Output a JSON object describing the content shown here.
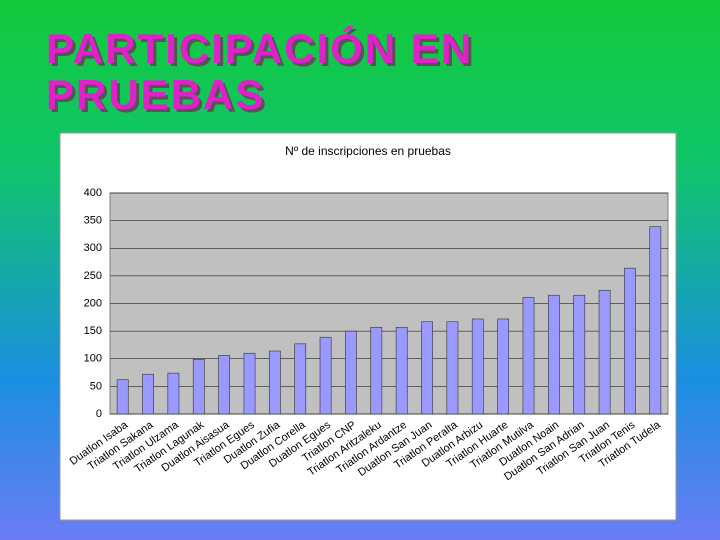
{
  "slide_title": "PARTICIPACIÓN EN PRUEBAS",
  "chart_data": {
    "type": "bar",
    "title": "Nº de inscripciones en pruebas",
    "categories": [
      "Duatlon Isaba",
      "Triatlon Sakana",
      "Triatlon Ulzama",
      "Triatlon Lagunak",
      "Duatlon Aisasua",
      "Triatlon Egues",
      "Duatlon Zufia",
      "Duatlon Corella",
      "Duatlon Egues",
      "Triatlon CNP",
      "Triatlon Aritzaleku",
      "Triatlon Ardantze",
      "Duatlon San Juan",
      "Triatlon Peralta",
      "Duatlon Arbizu",
      "Triatlon Huarte",
      "Triatlon Mutilva",
      "Duatlon Noain",
      "Duatlon San Adrian",
      "Triatlon San Juan",
      "Triatlon Tenis",
      "Triatlon Tudela"
    ],
    "values": [
      62,
      72,
      74,
      99,
      106,
      110,
      114,
      127,
      139,
      150,
      157,
      157,
      167,
      167,
      172,
      172,
      211,
      215,
      215,
      224,
      264,
      339
    ],
    "color": "#9999ff",
    "ylim": [
      0,
      400
    ],
    "yticks": [
      0,
      50,
      100,
      150,
      200,
      250,
      300,
      350,
      400
    ],
    "grid": true
  }
}
